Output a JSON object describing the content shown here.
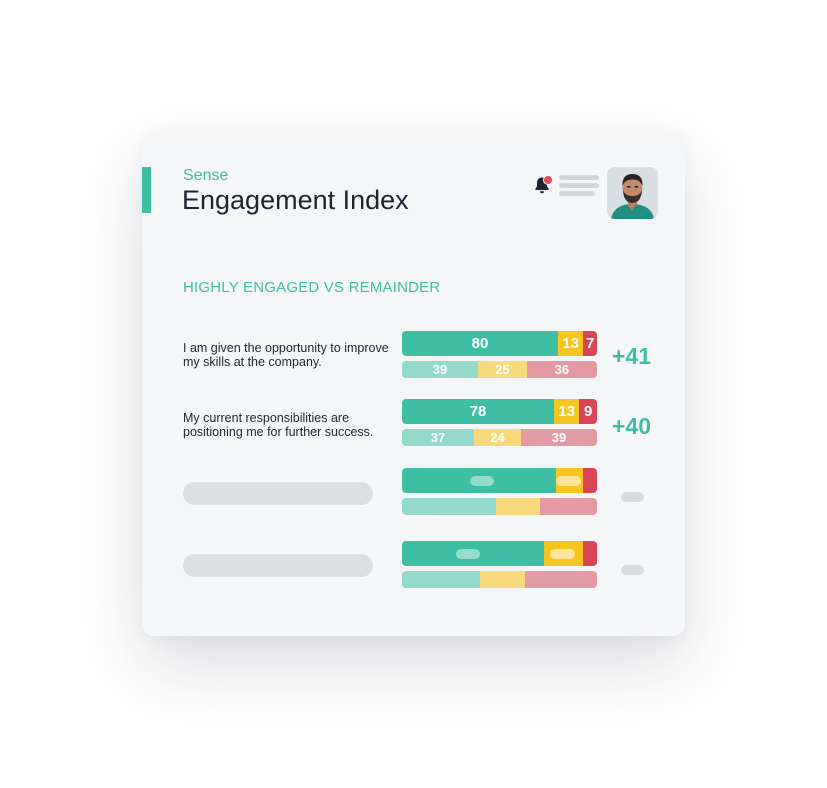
{
  "header": {
    "brand": "Sense",
    "title": "Engagement Index",
    "notification_count": "1"
  },
  "section": {
    "title": "HIGHLY ENGAGED VS REMAINDER"
  },
  "colors": {
    "teal": "#3ebfa3",
    "teal_light": "#92d8cb",
    "yellow": "#f7c520",
    "yellow_light": "#f8da7c",
    "red": "#d94456",
    "red_light": "#e39aa2",
    "placeholder": "#dcdee1"
  },
  "questions": [
    {
      "text": "I am given the opportunity to improve my skills at the company.",
      "highly_engaged": {
        "positive": "80",
        "neutral": "13",
        "negative": "7"
      },
      "remainder": {
        "positive": "39",
        "neutral": "25",
        "negative": "36"
      },
      "delta": "+41"
    },
    {
      "text": "My current responsibilities are positioning me for further success.",
      "highly_engaged": {
        "positive": "78",
        "neutral": "13",
        "negative": "9"
      },
      "remainder": {
        "positive": "37",
        "neutral": "24",
        "negative": "39"
      },
      "delta": "+40"
    }
  ],
  "placeholder_rows": [
    {
      "highly_engaged": [
        79,
        14,
        7
      ],
      "remainder": [
        48,
        23,
        29
      ]
    },
    {
      "highly_engaged": [
        73,
        20,
        7
      ],
      "remainder": [
        40,
        23,
        37
      ]
    }
  ]
}
